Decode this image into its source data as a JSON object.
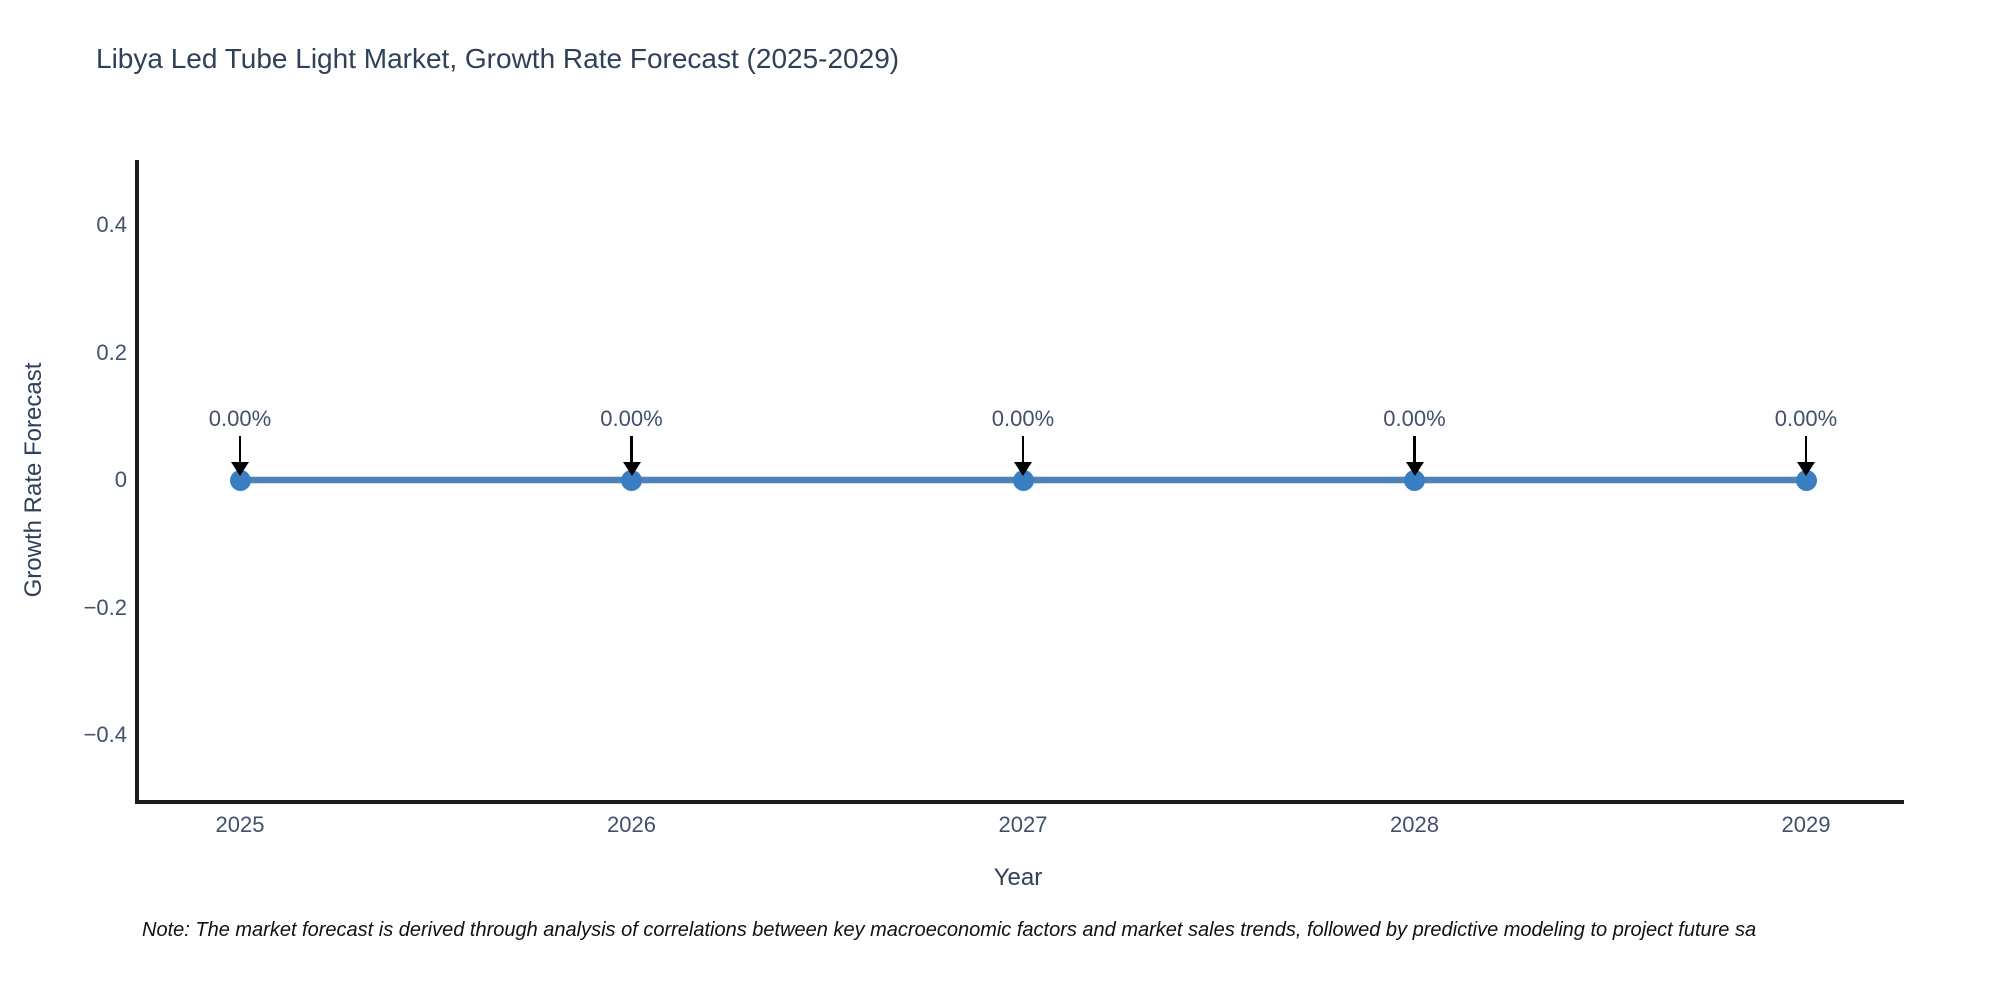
{
  "chart_data": {
    "type": "line",
    "title": "Libya Led Tube Light Market, Growth Rate Forecast (2025-2029)",
    "xlabel": "Year",
    "ylabel": "Growth Rate Forecast",
    "x": [
      "2025",
      "2026",
      "2027",
      "2028",
      "2029"
    ],
    "values": [
      0,
      0,
      0,
      0,
      0
    ],
    "point_labels": [
      "0.00%",
      "0.00%",
      "0.00%",
      "0.00%",
      "0.00%"
    ],
    "yticks": [
      0.4,
      0.2,
      0,
      -0.2,
      -0.4
    ],
    "ytick_labels": [
      "0.4",
      "0.2",
      "0",
      "−0.2",
      "−0.4"
    ],
    "ylim": [
      -0.5,
      0.5
    ],
    "grid": false,
    "legend": "none",
    "marker_style": "circle-with-down-arrow-annotation",
    "line_color": "#4d84b5",
    "marker_color": "#3a7ec2",
    "annotation_arrow_color": "#000000",
    "axis_color": "#1a1a1a",
    "title_color": "#2f4158",
    "tick_color": "#42506b",
    "note": "Note: The market forecast is derived through analysis of correlations between key macroeconomic factors and market sales trends, followed by predictive modeling to project future sa"
  }
}
